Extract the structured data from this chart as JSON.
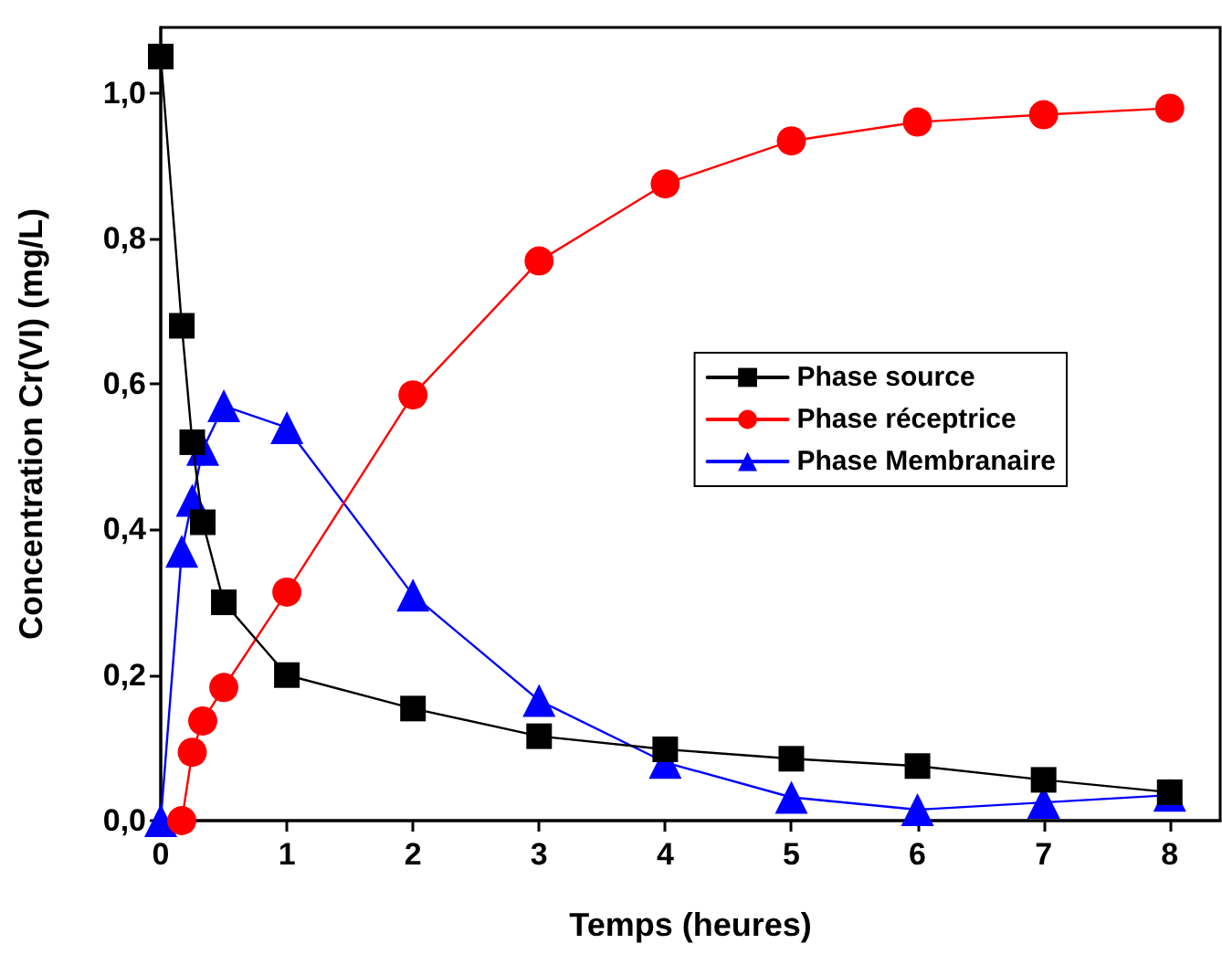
{
  "chart_data": {
    "type": "line",
    "xlabel": "Temps (heures)",
    "ylabel": "Concentration Cr(VI) (mg/L)",
    "xlim": [
      0,
      8.4
    ],
    "xticks": [
      0,
      1,
      2,
      3,
      4,
      5,
      6,
      7,
      8
    ],
    "ylim": [
      0,
      1.09
    ],
    "yticks": [
      {
        "value": 0,
        "label": "0,0"
      },
      {
        "value": 0.2,
        "label": "0,2"
      },
      {
        "value": 0.4,
        "label": "0,4"
      },
      {
        "value": 0.6,
        "label": "0,6"
      },
      {
        "value": 0.8,
        "label": "0,8"
      },
      {
        "value": 1.0,
        "label": "1,0"
      }
    ],
    "grid": false,
    "legend": "right",
    "line_style": "solid",
    "series": [
      {
        "name": "Phase source",
        "color": "#000000",
        "marker": "square",
        "x": [
          0,
          0.167,
          0.25,
          0.333,
          0.5,
          1,
          2,
          3,
          4,
          5,
          6,
          7,
          8
        ],
        "values": [
          1.05,
          0.68,
          0.52,
          0.41,
          0.3,
          0.2,
          0.154,
          0.116,
          0.098,
          0.085,
          0.075,
          0.056,
          0.039
        ]
      },
      {
        "name": "Phase réceptrice",
        "color": "#ff0000",
        "marker": "circle",
        "x": [
          0.167,
          0.25,
          0.333,
          0.5,
          1,
          2,
          3,
          4,
          5,
          6,
          7,
          8
        ],
        "values": [
          0,
          0.094,
          0.137,
          0.183,
          0.314,
          0.585,
          0.769,
          0.875,
          0.934,
          0.96,
          0.97,
          0.979
        ]
      },
      {
        "name": "Phase Membranaire",
        "color": "#0000ff",
        "marker": "triangle",
        "x": [
          0,
          0.167,
          0.25,
          0.333,
          0.5,
          1,
          2,
          3,
          4,
          5,
          6,
          7,
          8
        ],
        "values": [
          0,
          0.37,
          0.44,
          0.51,
          0.57,
          0.54,
          0.31,
          0.165,
          0.08,
          0.032,
          0.015,
          0.025,
          0.035
        ]
      }
    ]
  }
}
